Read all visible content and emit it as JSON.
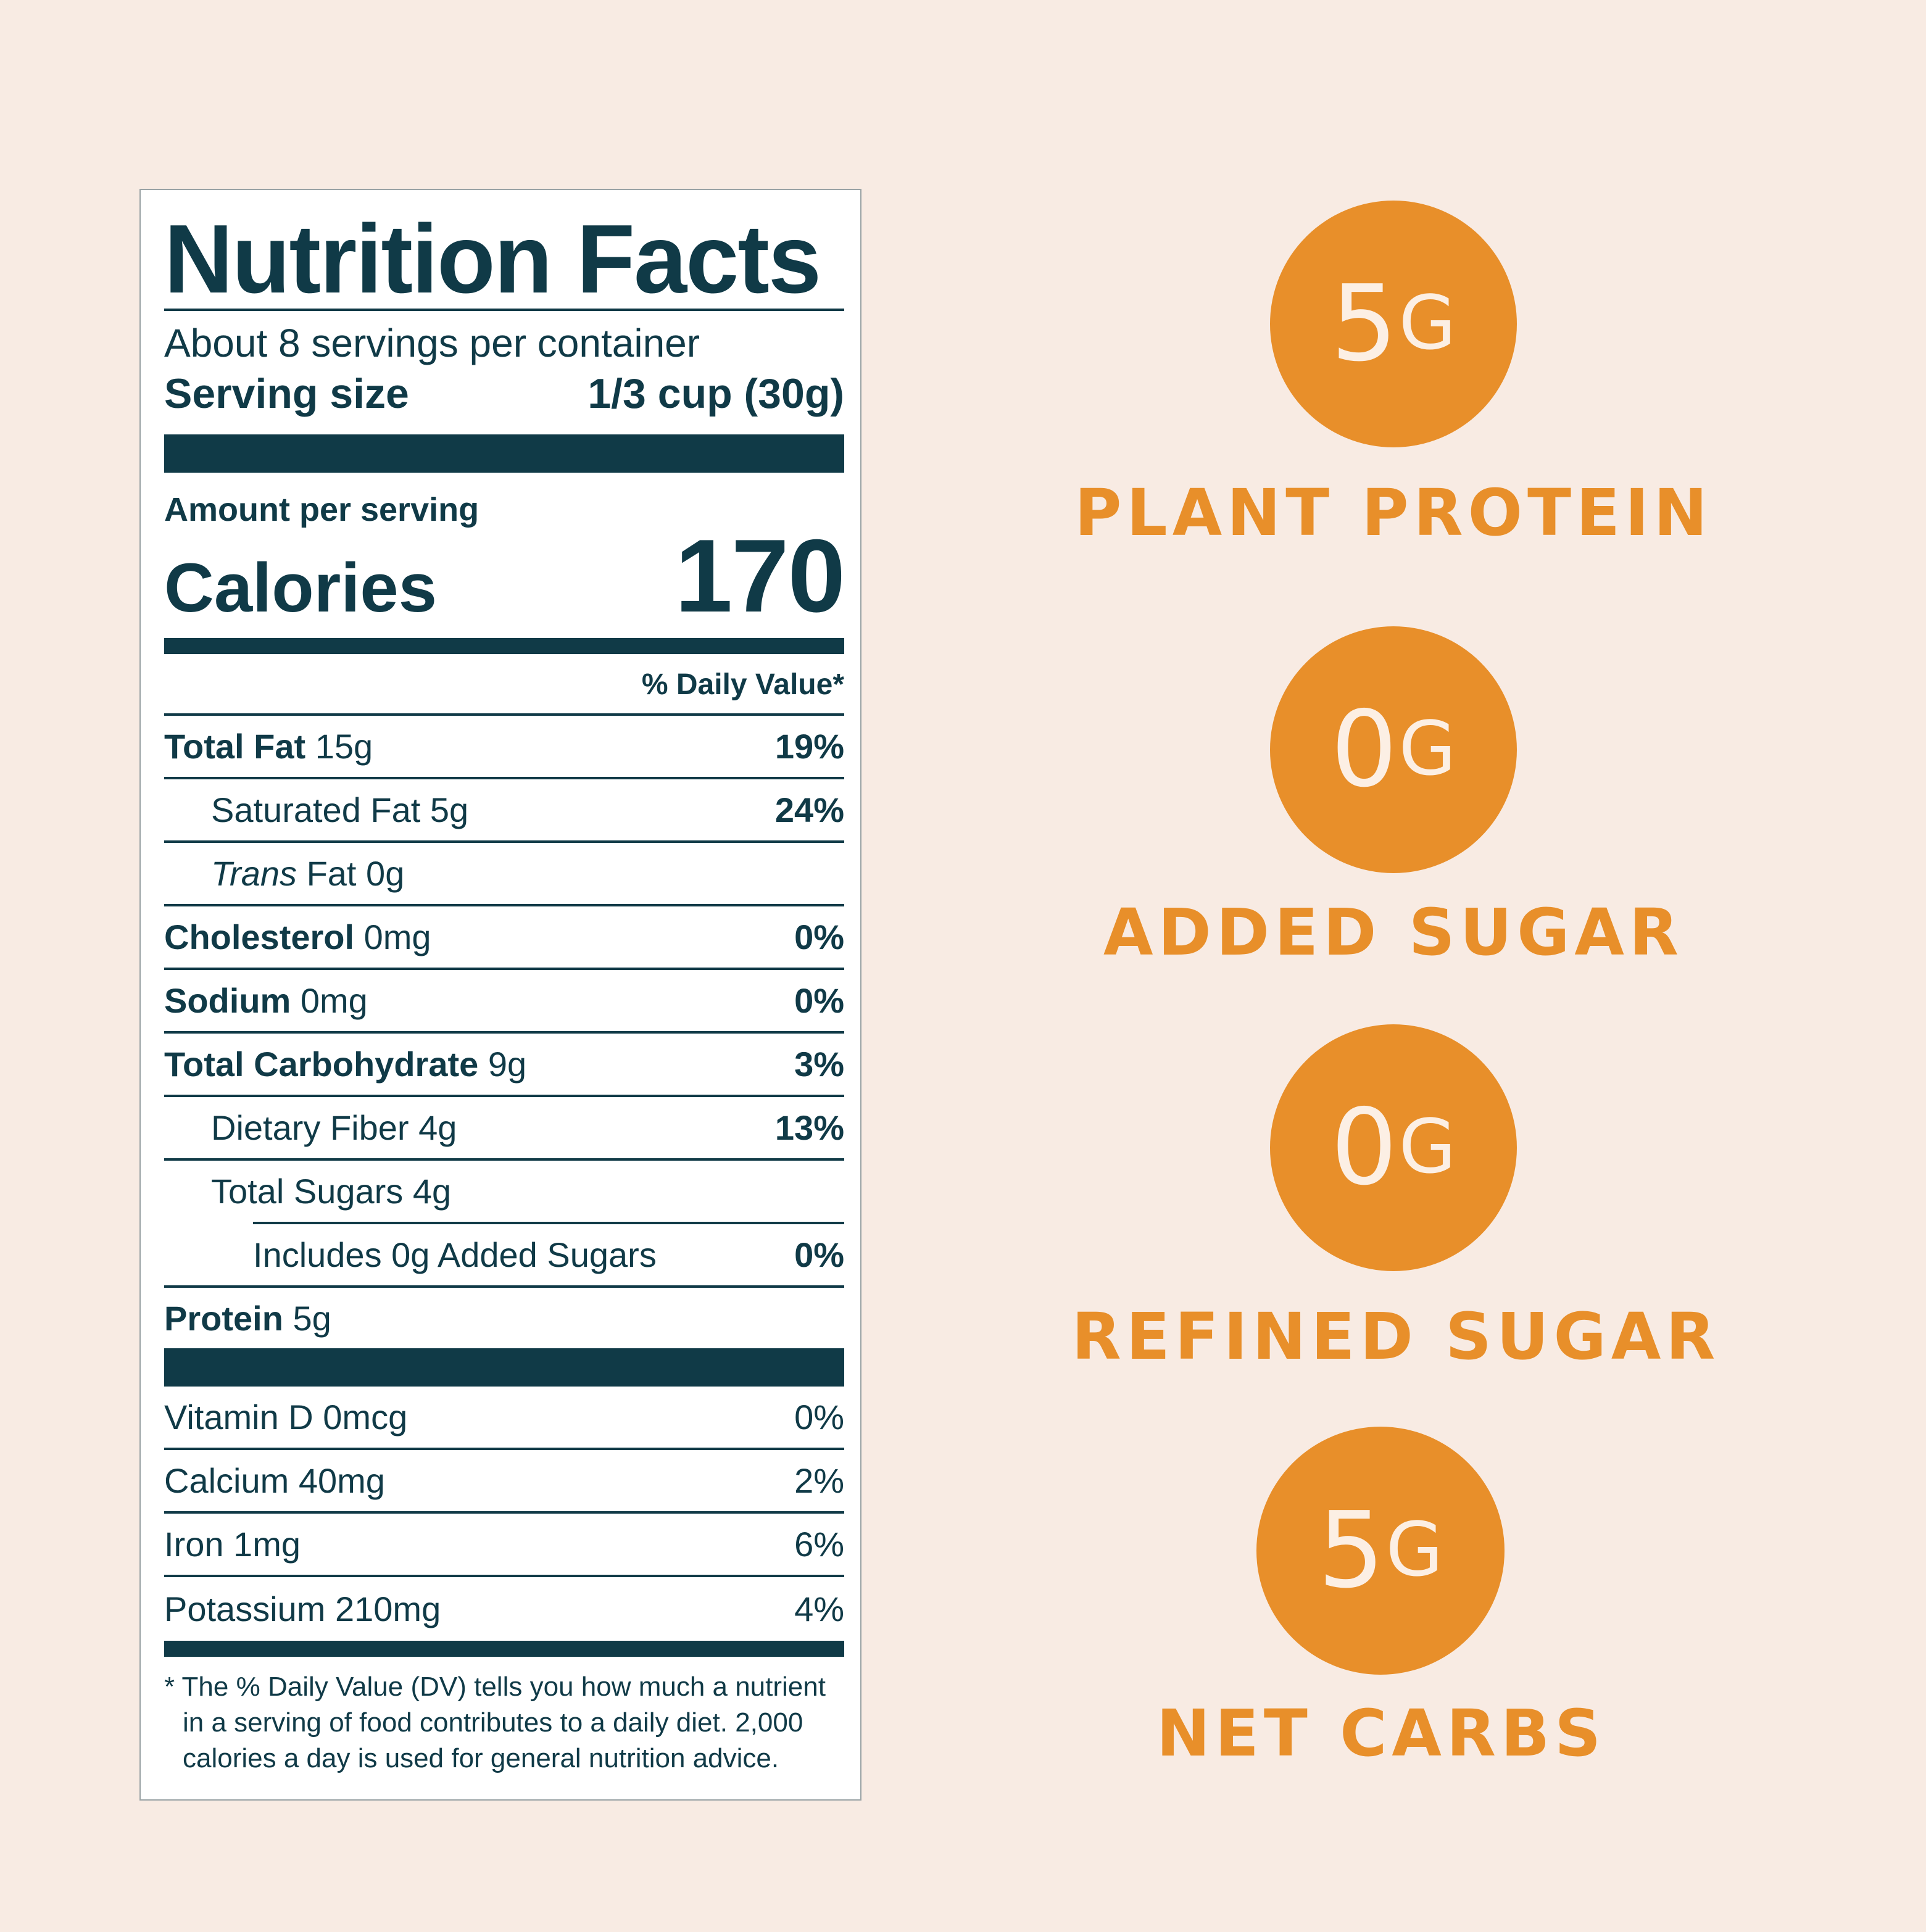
{
  "label": {
    "title": "Nutrition Facts",
    "servings": "About 8 servings per container",
    "serving_size_label": "Serving size",
    "serving_size_value": "1/3 cup (30g)",
    "amount_per_serving": "Amount per serving",
    "calories_label": "Calories",
    "calories_value": "170",
    "dv_header": "% Daily Value*",
    "rows": [
      {
        "name": "Total Fat",
        "amount": "15g",
        "dv": "19%"
      },
      {
        "name": "Saturated Fat",
        "amount": "5g",
        "dv": "24%"
      },
      {
        "name_italic": "Trans",
        "name": "Fat",
        "amount": "0g",
        "dv": ""
      },
      {
        "name": "Cholesterol",
        "amount": "0mg",
        "dv": "0%"
      },
      {
        "name": "Sodium",
        "amount": "0mg",
        "dv": "0%"
      },
      {
        "name": "Total Carbohydrate",
        "amount": "9g",
        "dv": "3%"
      },
      {
        "name": "Dietary Fiber",
        "amount": "4g",
        "dv": "13%"
      },
      {
        "name": "Total Sugars",
        "amount": "4g",
        "dv": ""
      },
      {
        "name": "Includes 0g Added Sugars",
        "amount": "",
        "dv": "0%"
      },
      {
        "name": "Protein",
        "amount": "5g",
        "dv": ""
      }
    ],
    "vitamins": [
      {
        "name": "Vitamin D 0mcg",
        "dv": "0%"
      },
      {
        "name": "Calcium 40mg",
        "dv": "2%"
      },
      {
        "name": "Iron 1mg",
        "dv": "6%"
      },
      {
        "name": "Potassium 210mg",
        "dv": "4%"
      }
    ],
    "footnote": "* The % Daily Value (DV) tells you how much a nutrient in a serving of food contributes to a daily diet. 2,000 calories a day is used for general nutrition advice."
  },
  "highlights": [
    {
      "num": "5",
      "unit": "G",
      "caption": "PLANT PROTEIN"
    },
    {
      "num": "0",
      "unit": "G",
      "caption": "ADDED SUGAR"
    },
    {
      "num": "0",
      "unit": "G",
      "caption": "REFINED SUGAR"
    },
    {
      "num": "5",
      "unit": "G",
      "caption": "NET CARBS"
    }
  ],
  "colors": {
    "background": "#f8ebe3",
    "label_ink": "#103a47",
    "accent": "#e88f2a",
    "circle_text": "#fcefe4"
  }
}
